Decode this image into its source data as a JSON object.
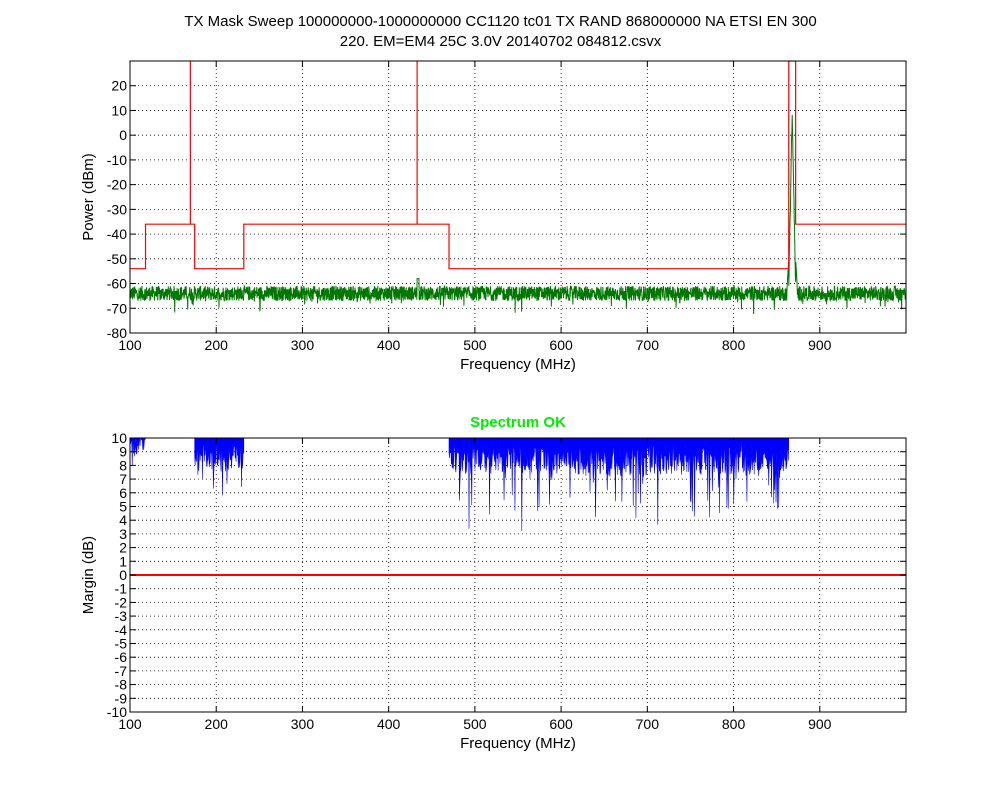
{
  "figure": {
    "title_lines": [
      "TX Mask Sweep 100000000-1000000000 CC1120 tc01 TX RAND 868000000 NA ETSI EN 300",
      "220. EM=EM4 25C 3.0V 20140702 084812.csvx"
    ]
  },
  "chart_data": [
    {
      "type": "line",
      "title": "",
      "xlabel": "Frequency (MHz)",
      "ylabel": "Power (dBm)",
      "xlim": [
        100,
        1000
      ],
      "ylim": [
        -80,
        30
      ],
      "xticks": [
        100,
        200,
        300,
        400,
        500,
        600,
        700,
        800,
        900
      ],
      "yticks": [
        -80,
        -70,
        -60,
        -50,
        -40,
        -30,
        -20,
        -10,
        0,
        10,
        20
      ],
      "grid": true,
      "series": [
        {
          "role": "mask",
          "color": "#ff0000",
          "x": [
            100,
            118,
            118,
            170,
            170,
            170,
            170,
            175,
            175,
            232,
            232,
            433,
            433,
            433,
            433,
            470,
            470,
            864,
            864,
            872,
            872,
            1000
          ],
          "y": [
            -54,
            -54,
            -36,
            -36,
            30,
            30,
            -36,
            -36,
            -54,
            -54,
            -36,
            -36,
            30,
            30,
            -36,
            -36,
            -54,
            -54,
            30,
            30,
            -36,
            -36
          ]
        },
        {
          "role": "measured",
          "color": "#007700",
          "noise_floor": -64,
          "noise_spread": 6,
          "peaks": [
            {
              "x": 868,
              "y": 10
            },
            {
              "x": 434,
              "y": -58
            }
          ]
        }
      ]
    },
    {
      "type": "area",
      "title": "Spectrum OK",
      "title_color": "#00ee00",
      "xlabel": "Frequency (MHz)",
      "ylabel": "Margin (dB)",
      "xlim": [
        100,
        1000
      ],
      "ylim": [
        -10,
        10
      ],
      "xticks": [
        100,
        200,
        300,
        400,
        500,
        600,
        700,
        800,
        900
      ],
      "yticks": [
        -10,
        -9,
        -8,
        -7,
        -6,
        -5,
        -4,
        -3,
        -2,
        -1,
        0,
        1,
        2,
        3,
        4,
        5,
        6,
        7,
        8,
        9,
        10
      ],
      "grid": true,
      "zero_line_color": "#ff0000",
      "series": [
        {
          "color": "#0000ff",
          "segments": [
            {
              "x_start": 100,
              "x_end": 118,
              "baseline": 9.2,
              "min": 7.0
            },
            {
              "x_start": 175,
              "x_end": 232,
              "baseline": 8.0,
              "min": 5.0
            },
            {
              "x_start": 470,
              "x_end": 864,
              "baseline": 7.8,
              "min": 3.2
            }
          ]
        }
      ]
    }
  ]
}
